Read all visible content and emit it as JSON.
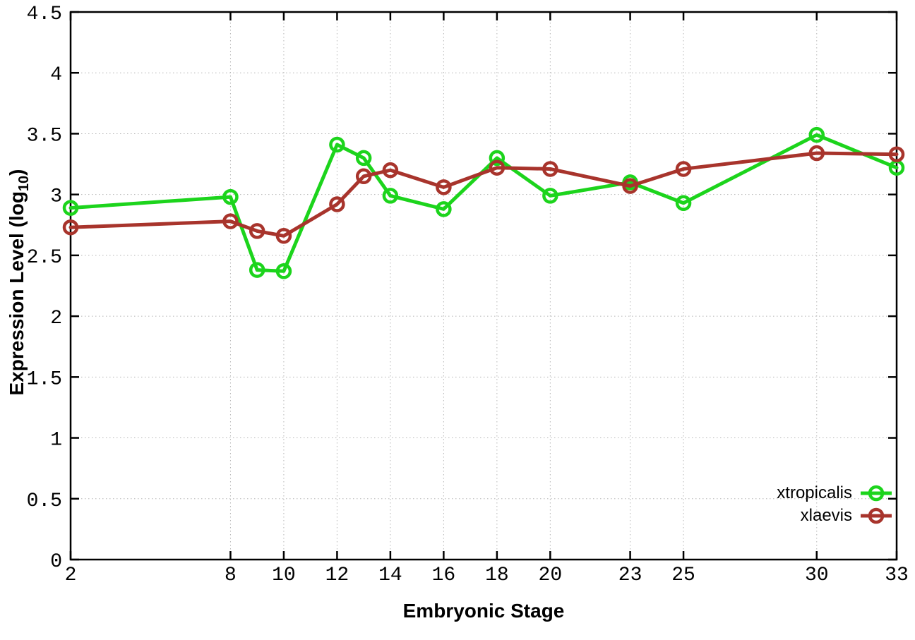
{
  "chart_data": {
    "type": "line",
    "title": "",
    "xlabel": "Embryonic Stage",
    "ylabel_prefix": "Expression Level (log",
    "ylabel_sub": "10",
    "ylabel_suffix": ")",
    "x": [
      2,
      8,
      9,
      10,
      12,
      13,
      14,
      16,
      18,
      20,
      23,
      25,
      30,
      33
    ],
    "xlim": [
      2,
      33
    ],
    "ylim": [
      0,
      4.5
    ],
    "x_ticks": [
      2,
      8,
      10,
      12,
      14,
      16,
      18,
      20,
      23,
      25,
      30,
      33
    ],
    "y_ticks": [
      0,
      0.5,
      1,
      1.5,
      2,
      2.5,
      3,
      3.5,
      4,
      4.5
    ],
    "grid": true,
    "legend_position": "inside-bottom-right",
    "marker": "open-circle",
    "series": [
      {
        "name": "xtropicalis",
        "color": "#1cd41c",
        "values": [
          2.89,
          2.98,
          2.38,
          2.37,
          3.41,
          3.3,
          2.99,
          2.88,
          3.3,
          2.99,
          3.1,
          2.93,
          3.49,
          3.22
        ]
      },
      {
        "name": "xlaevis",
        "color": "#a8342c",
        "values": [
          2.73,
          2.78,
          2.7,
          2.66,
          2.92,
          3.15,
          3.2,
          3.06,
          3.22,
          3.21,
          3.07,
          3.21,
          3.34,
          3.33
        ]
      }
    ]
  },
  "colors": {
    "background": "#ffffff",
    "border": "#000000",
    "grid": "#b5b5b5",
    "tick_label": "#000000"
  }
}
